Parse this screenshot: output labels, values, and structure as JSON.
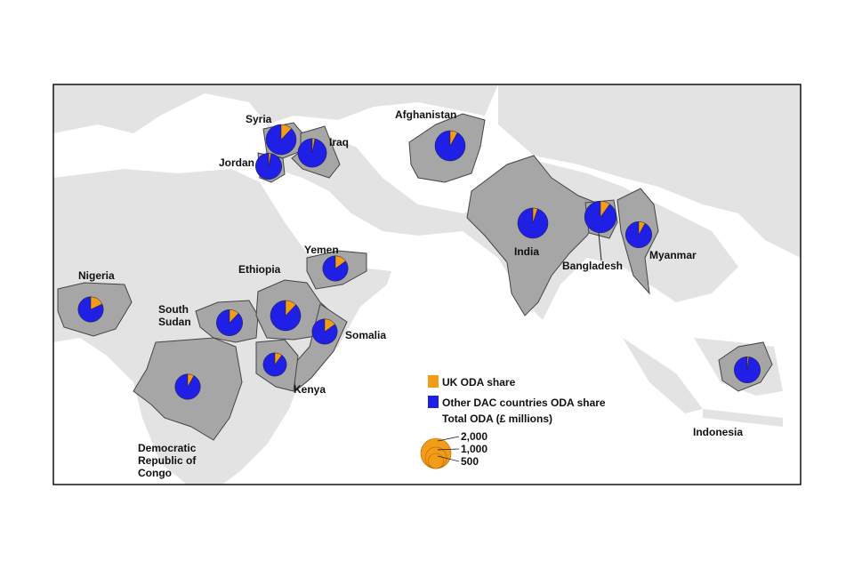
{
  "map": {
    "colors": {
      "uk": "#f39c1a",
      "other": "#1f1fe6"
    },
    "countries": [
      {
        "name": "Syria",
        "uk_share": 12,
        "other_share": 88,
        "total": 2000
      },
      {
        "name": "Iraq",
        "uk_share": 3,
        "other_share": 97,
        "total": 1800
      },
      {
        "name": "Jordan",
        "uk_share": 3,
        "other_share": 97,
        "total": 1500
      },
      {
        "name": "Afghanistan",
        "uk_share": 8,
        "other_share": 92,
        "total": 2000
      },
      {
        "name": "India",
        "uk_share": 5,
        "other_share": 95,
        "total": 2000
      },
      {
        "name": "Bangladesh",
        "uk_share": 10,
        "other_share": 90,
        "total": 2200
      },
      {
        "name": "Myanmar",
        "uk_share": 8,
        "other_share": 92,
        "total": 1500
      },
      {
        "name": "Yemen",
        "uk_share": 15,
        "other_share": 85,
        "total": 1400
      },
      {
        "name": "Nigeria",
        "uk_share": 18,
        "other_share": 82,
        "total": 1400
      },
      {
        "name": "South Sudan",
        "uk_share": 12,
        "other_share": 88,
        "total": 1500
      },
      {
        "name": "Ethiopia",
        "uk_share": 12,
        "other_share": 88,
        "total": 2000
      },
      {
        "name": "Somalia",
        "uk_share": 15,
        "other_share": 85,
        "total": 1400
      },
      {
        "name": "Kenya",
        "uk_share": 10,
        "other_share": 90,
        "total": 1200
      },
      {
        "name": "Democratic Republic of Congo",
        "uk_share": 8,
        "other_share": 92,
        "total": 1400
      },
      {
        "name": "Indonesia",
        "uk_share": 2,
        "other_share": 98,
        "total": 1500
      }
    ],
    "legend": {
      "uk_label": "UK ODA share",
      "other_label": "Other DAC countries ODA share",
      "size_title": "Total ODA (£ millions)",
      "size_ticks": [
        {
          "value": 2000,
          "label": "2,000"
        },
        {
          "value": 1000,
          "label": "1,000"
        },
        {
          "value": 500,
          "label": "500"
        }
      ]
    }
  }
}
